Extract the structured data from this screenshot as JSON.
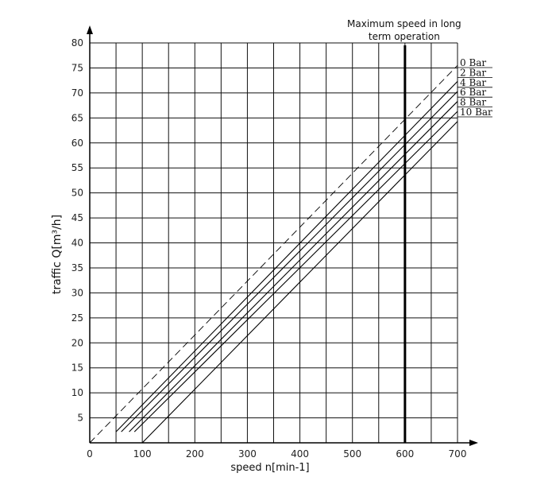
{
  "chart_data": {
    "type": "line",
    "xlabel": "speed n[min-1]",
    "ylabel": "traffic Q[m³/h]",
    "xlim": [
      0,
      700
    ],
    "ylim": [
      0,
      80
    ],
    "x_ticks": [
      0,
      100,
      200,
      300,
      400,
      500,
      600,
      700
    ],
    "y_ticks": [
      5,
      10,
      15,
      20,
      25,
      30,
      35,
      40,
      45,
      50,
      55,
      60,
      65,
      70,
      75,
      80
    ],
    "grid": true,
    "annotation": {
      "x": 600,
      "line1": "Maximum speed in long",
      "line2": "term operation"
    },
    "series": [
      {
        "name": "0 Bar",
        "style": "dashed",
        "points": [
          [
            0,
            0
          ],
          [
            700,
            75.5
          ]
        ]
      },
      {
        "name": "2 Bar",
        "style": "solid",
        "points": [
          [
            50,
            2.2
          ],
          [
            700,
            72.3
          ]
        ]
      },
      {
        "name": "4 Bar",
        "style": "solid",
        "points": [
          [
            60,
            2.2
          ],
          [
            700,
            70.3
          ]
        ]
      },
      {
        "name": "6 Bar",
        "style": "solid",
        "points": [
          [
            75,
            2.2
          ],
          [
            700,
            68.3
          ]
        ]
      },
      {
        "name": "8 Bar",
        "style": "solid",
        "points": [
          [
            85,
            2.2
          ],
          [
            700,
            66.3
          ]
        ]
      },
      {
        "name": "10 Bar",
        "style": "solid",
        "points": [
          [
            100,
            0
          ],
          [
            700,
            64.3
          ]
        ]
      }
    ]
  }
}
